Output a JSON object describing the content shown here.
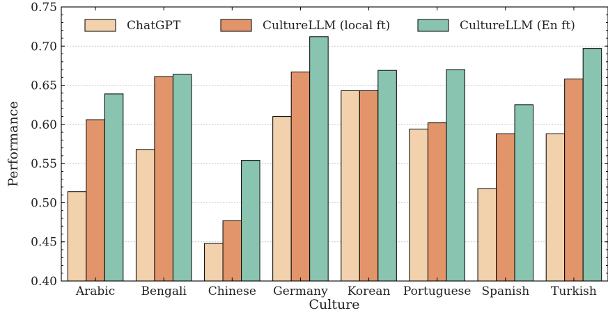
{
  "chart_data": {
    "type": "bar",
    "xlabel": "Culture",
    "ylabel": "Performance",
    "ylim": [
      0.4,
      0.75
    ],
    "yticks": [
      "0.40",
      "0.45",
      "0.50",
      "0.55",
      "0.60",
      "0.65",
      "0.70",
      "0.75"
    ],
    "grid": "horizontal-dashed",
    "legend_position": "top",
    "categories": [
      "Arabic",
      "Bengali",
      "Chinese",
      "Germany",
      "Korean",
      "Portuguese",
      "Spanish",
      "Turkish"
    ],
    "series": [
      {
        "name": "ChatGPT",
        "color": "#f1d2ad",
        "values": [
          0.514,
          0.568,
          0.448,
          0.61,
          0.643,
          0.594,
          0.518,
          0.588
        ]
      },
      {
        "name": "CultureLLM (local ft)",
        "color": "#e2956a",
        "values": [
          0.606,
          0.661,
          0.477,
          0.667,
          0.643,
          0.602,
          0.588,
          0.658
        ]
      },
      {
        "name": "CultureLLM (En ft)",
        "color": "#89c4b0",
        "values": [
          0.639,
          0.664,
          0.554,
          0.712,
          0.669,
          0.67,
          0.625,
          0.697
        ]
      }
    ]
  }
}
